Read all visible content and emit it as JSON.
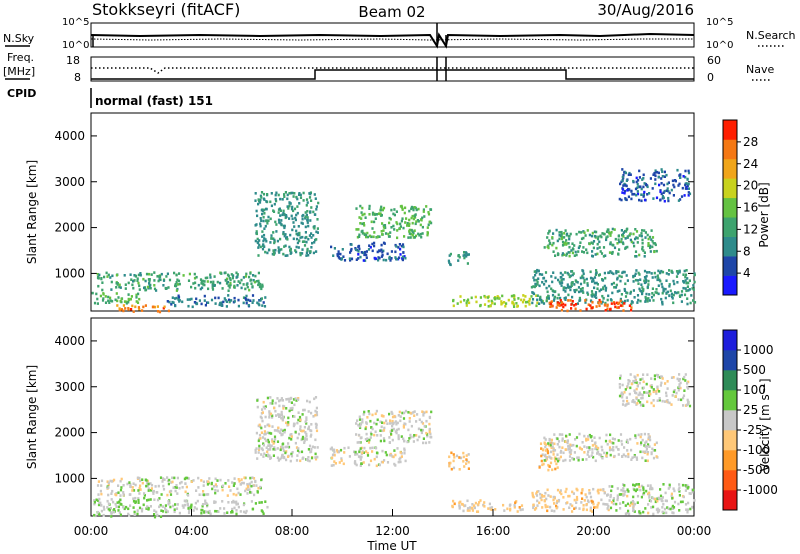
{
  "header": {
    "station": "Stokkseyri (fitACF)",
    "beam": "Beam 02",
    "date": "30/Aug/2016"
  },
  "left_labels": {
    "nsky": "N.Sky",
    "freq": "Freq.",
    "mhz": "[MHz]",
    "cpid": "CPID"
  },
  "right_labels": {
    "nsearch": "N.Search",
    "nave": "Nave"
  },
  "mode_text": "normal (fast) 151",
  "colors": {
    "power": [
      "#1a1aff",
      "#1e46a8",
      "#2e8b8b",
      "#3da36e",
      "#64c242",
      "#c8d21e",
      "#f0a51a",
      "#f57814",
      "#ff1e00"
    ],
    "velocity": [
      "#e81414",
      "#ff5a14",
      "#ff9a28",
      "#ffc878",
      "#c8c8c8",
      "#64c83c",
      "#2e8b57",
      "#1e46a8",
      "#1e1edc"
    ]
  },
  "chart_data": [
    {
      "type": "line",
      "panel": "noise",
      "left_ticks": [
        "10^5",
        "10^0"
      ],
      "right_ticks": [
        "10^5",
        "10^0"
      ],
      "series": [
        {
          "name": "N.Sky"
        },
        {
          "name": "N.Search"
        }
      ]
    },
    {
      "type": "line",
      "panel": "frequency / nave",
      "left_ticks": [
        "18",
        "8"
      ],
      "right_ticks": [
        "60",
        "0"
      ],
      "series": [
        {
          "name": "Freq."
        },
        {
          "name": "Nave"
        }
      ]
    },
    {
      "type": "heatmap",
      "panel": "power",
      "ylabel": "Slant Range [km]",
      "yticks": [
        "1000",
        "2000",
        "3000",
        "4000"
      ],
      "ylim": [
        180,
        4500
      ],
      "xlim": [
        0,
        24
      ],
      "colorbar": {
        "label": "Power [dB]",
        "ticks": [
          "4",
          "8",
          "12",
          "16",
          "20",
          "24",
          "28"
        ],
        "range": [
          0,
          32
        ]
      },
      "regions": [
        {
          "t0": 0.2,
          "t1": 6.8,
          "r0": 650,
          "r1": 1050,
          "v": 12
        },
        {
          "t0": 0.0,
          "t1": 2.0,
          "r0": 350,
          "r1": 600,
          "v": 14
        },
        {
          "t0": 1.0,
          "t1": 3.2,
          "r0": 180,
          "r1": 330,
          "v": 26
        },
        {
          "t0": 3.0,
          "t1": 7.0,
          "r0": 300,
          "r1": 550,
          "v": 8
        },
        {
          "t0": 6.5,
          "t1": 9.0,
          "r0": 1400,
          "r1": 2800,
          "v": 10
        },
        {
          "t0": 10.5,
          "t1": 13.5,
          "r0": 1800,
          "r1": 2500,
          "v": 14
        },
        {
          "t0": 9.5,
          "t1": 12.5,
          "r0": 1300,
          "r1": 1700,
          "v": 6
        },
        {
          "t0": 14.3,
          "t1": 18.2,
          "r0": 300,
          "r1": 550,
          "v": 18
        },
        {
          "t0": 14.2,
          "t1": 15.0,
          "r0": 1200,
          "r1": 1500,
          "v": 10
        },
        {
          "t0": 18.0,
          "t1": 22.5,
          "r0": 1400,
          "r1": 2000,
          "v": 12
        },
        {
          "t0": 17.5,
          "t1": 24.0,
          "r0": 350,
          "r1": 1100,
          "v": 10
        },
        {
          "t0": 18.2,
          "t1": 21.5,
          "r0": 200,
          "r1": 450,
          "v": 28
        },
        {
          "t0": 21.0,
          "t1": 23.8,
          "r0": 2600,
          "r1": 3300,
          "v": 6
        }
      ]
    },
    {
      "type": "heatmap",
      "panel": "velocity",
      "ylabel": "Slant Range [km]",
      "xlabel": "Time UT",
      "xticks": [
        "00:00",
        "04:00",
        "08:00",
        "12:00",
        "16:00",
        "20:00",
        "00:00"
      ],
      "yticks": [
        "1000",
        "2000",
        "3000",
        "4000"
      ],
      "ylim": [
        180,
        4500
      ],
      "xlim": [
        0,
        24
      ],
      "colorbar": {
        "label": "Velocity [m s⁻¹]",
        "ticks": [
          "-1000",
          "-500",
          "-100",
          "-25",
          "25",
          "100",
          "500",
          "1000"
        ],
        "range": [
          -1200,
          1200
        ]
      },
      "regions": [
        {
          "t0": 0.2,
          "t1": 6.8,
          "r0": 650,
          "r1": 1050,
          "v": 0
        },
        {
          "t0": 0.0,
          "t1": 3.0,
          "r0": 180,
          "r1": 600,
          "v": 150
        },
        {
          "t0": 3.0,
          "t1": 7.0,
          "r0": 250,
          "r1": 550,
          "v": 80
        },
        {
          "t0": 6.5,
          "t1": 9.0,
          "r0": 1400,
          "r1": 2800,
          "v": 0
        },
        {
          "t0": 10.5,
          "t1": 13.5,
          "r0": 1800,
          "r1": 2500,
          "v": 0
        },
        {
          "t0": 9.5,
          "t1": 12.5,
          "r0": 1300,
          "r1": 1700,
          "v": 0
        },
        {
          "t0": 14.3,
          "t1": 17.2,
          "r0": 300,
          "r1": 550,
          "v": -200
        },
        {
          "t0": 14.2,
          "t1": 15.0,
          "r0": 1200,
          "r1": 1600,
          "v": -300
        },
        {
          "t0": 17.5,
          "t1": 20.5,
          "r0": 300,
          "r1": 800,
          "v": -200
        },
        {
          "t0": 17.8,
          "t1": 18.6,
          "r0": 1200,
          "r1": 1900,
          "v": -300
        },
        {
          "t0": 18.0,
          "t1": 22.5,
          "r0": 1400,
          "r1": 2000,
          "v": 0
        },
        {
          "t0": 20.5,
          "t1": 24.0,
          "r0": 250,
          "r1": 900,
          "v": 40
        },
        {
          "t0": 21.0,
          "t1": 23.8,
          "r0": 2600,
          "r1": 3300,
          "v": 0
        }
      ]
    }
  ]
}
